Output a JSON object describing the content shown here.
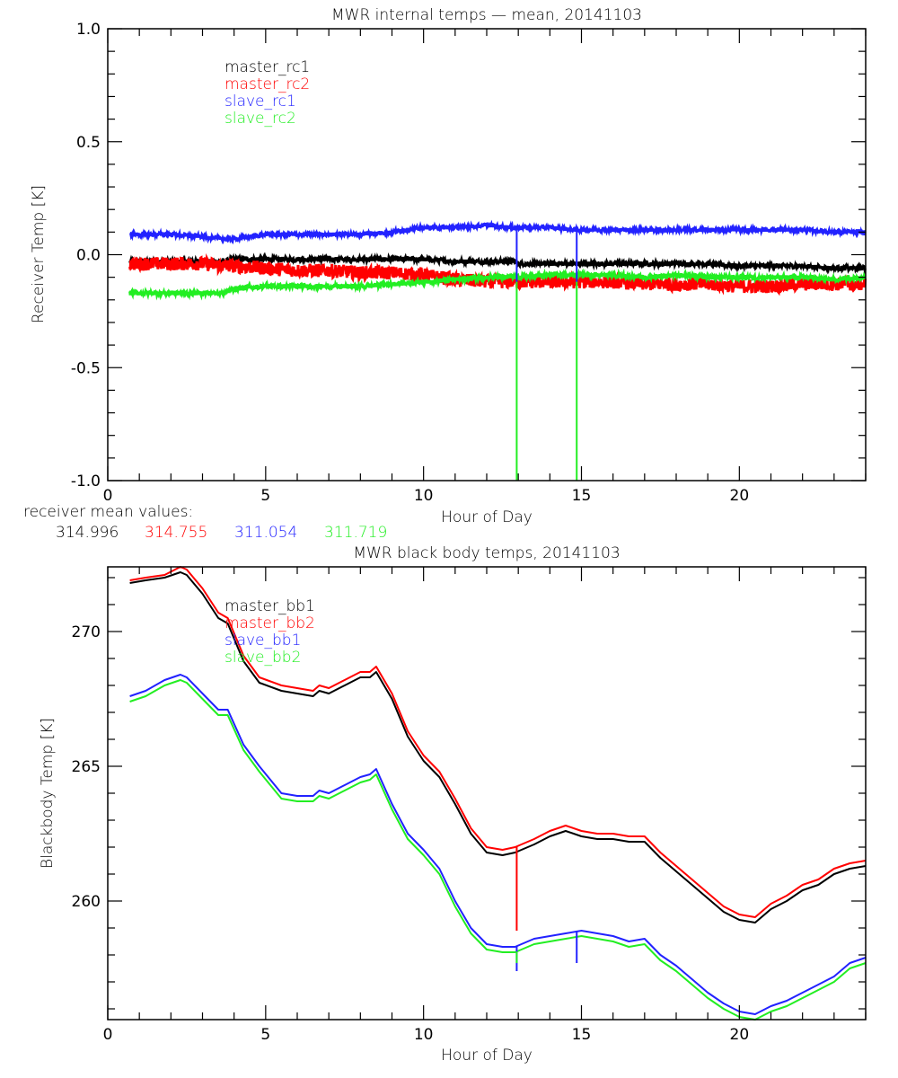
{
  "colors": {
    "black": "#000000",
    "red": "#ff0000",
    "blue": "#2222ff",
    "green": "#22ee22"
  },
  "chart_data": [
    {
      "type": "line",
      "title": "MWR internal temps — mean, 20141103",
      "xlabel": "Hour of Day",
      "ylabel": "Receiver Temp [K]",
      "xlim": [
        0,
        24
      ],
      "ylim": [
        -1.0,
        1.0
      ],
      "xticks": [
        "0",
        "5",
        "10",
        "15",
        "20"
      ],
      "xtick_values": [
        0,
        5,
        10,
        15,
        20
      ],
      "yticks": [
        "-1.0",
        "-0.5",
        "0.0",
        "0.5",
        "1.0"
      ],
      "ytick_values": [
        -1.0,
        -0.5,
        0.0,
        0.5,
        1.0
      ],
      "grid": false,
      "legend_position": "top-left",
      "noise": [
        0.01,
        0.03,
        0.008,
        0.01
      ],
      "x": [
        0.7,
        2,
        3,
        3.7,
        4,
        5,
        6,
        7,
        8,
        9,
        10,
        11,
        12,
        12.9,
        13,
        14,
        14.8,
        15,
        16,
        17,
        18,
        19,
        20,
        21,
        22,
        23,
        24
      ],
      "series": [
        {
          "name": "master_rc1",
          "color": "black",
          "values": [
            -0.03,
            -0.03,
            -0.03,
            -0.03,
            -0.02,
            -0.02,
            -0.02,
            -0.02,
            -0.02,
            -0.02,
            -0.02,
            -0.03,
            -0.03,
            -0.03,
            -0.04,
            -0.04,
            -0.04,
            -0.04,
            -0.04,
            -0.04,
            -0.04,
            -0.04,
            -0.05,
            -0.05,
            -0.05,
            -0.06,
            -0.06
          ]
        },
        {
          "name": "master_rc2",
          "color": "red",
          "values": [
            -0.04,
            -0.04,
            -0.04,
            -0.05,
            -0.05,
            -0.06,
            -0.07,
            -0.07,
            -0.08,
            -0.08,
            -0.09,
            -0.11,
            -0.12,
            -0.12,
            -0.12,
            -0.12,
            -0.12,
            -0.12,
            -0.12,
            -0.13,
            -0.13,
            -0.13,
            -0.14,
            -0.14,
            -0.13,
            -0.13,
            -0.13
          ]
        },
        {
          "name": "slave_rc1",
          "color": "blue",
          "values": [
            0.09,
            0.09,
            0.08,
            0.07,
            0.07,
            0.09,
            0.09,
            0.09,
            0.09,
            0.1,
            0.12,
            0.12,
            0.13,
            0.12,
            0.12,
            0.12,
            0.11,
            0.11,
            0.11,
            0.11,
            0.11,
            0.11,
            0.11,
            0.11,
            0.11,
            0.1,
            0.1
          ]
        },
        {
          "name": "slave_rc2",
          "color": "green",
          "values": [
            -0.17,
            -0.17,
            -0.17,
            -0.17,
            -0.15,
            -0.14,
            -0.14,
            -0.14,
            -0.14,
            -0.13,
            -0.12,
            -0.11,
            -0.1,
            -0.1,
            -0.1,
            -0.09,
            -0.09,
            -0.09,
            -0.09,
            -0.1,
            -0.09,
            -0.1,
            -0.1,
            -0.1,
            -0.1,
            -0.11,
            -0.1
          ]
        }
      ],
      "spikes": [
        {
          "x": 12.95,
          "series": "slave_rc2",
          "to": -1.0
        },
        {
          "x": 12.95,
          "series": "slave_rc1",
          "to": -0.12
        },
        {
          "x": 14.85,
          "series": "slave_rc2",
          "to": -1.0
        },
        {
          "x": 14.85,
          "series": "slave_rc1",
          "to": -0.12
        }
      ]
    },
    {
      "type": "line",
      "title": "MWR black body temps, 20141103",
      "xlabel": "Hour of Day",
      "ylabel": "Blackbody Temp [K]",
      "xlim": [
        0,
        24
      ],
      "ylim": [
        255.6,
        272.4
      ],
      "xticks": [
        "0",
        "5",
        "10",
        "15",
        "20"
      ],
      "xtick_values": [
        0,
        5,
        10,
        15,
        20
      ],
      "yticks": [
        "260",
        "265",
        "270"
      ],
      "ytick_values": [
        260,
        265,
        270
      ],
      "grid": false,
      "legend_position": "top-left",
      "x": [
        0.7,
        1.2,
        1.8,
        2.3,
        2.5,
        3.0,
        3.5,
        3.8,
        4.3,
        4.8,
        5.5,
        6.0,
        6.5,
        6.7,
        7.0,
        7.5,
        8.0,
        8.3,
        8.5,
        9.0,
        9.5,
        10.0,
        10.5,
        11.0,
        11.5,
        12.0,
        12.5,
        12.9,
        13.5,
        14.0,
        14.5,
        15.0,
        15.5,
        16.0,
        16.5,
        17.0,
        17.5,
        18.0,
        18.5,
        19.0,
        19.5,
        20.0,
        20.5,
        21.0,
        21.5,
        22.0,
        22.5,
        23.0,
        23.5,
        24.0
      ],
      "series": [
        {
          "name": "master_bb1",
          "color": "black",
          "values": [
            271.8,
            271.9,
            272.0,
            272.2,
            272.1,
            271.4,
            270.5,
            270.3,
            268.9,
            268.1,
            267.8,
            267.7,
            267.6,
            267.8,
            267.7,
            268.0,
            268.3,
            268.3,
            268.5,
            267.5,
            266.1,
            265.2,
            264.6,
            263.6,
            262.5,
            261.8,
            261.7,
            261.8,
            262.1,
            262.4,
            262.6,
            262.4,
            262.3,
            262.3,
            262.2,
            262.2,
            261.6,
            261.1,
            260.6,
            260.1,
            259.6,
            259.3,
            259.2,
            259.7,
            260.0,
            260.4,
            260.6,
            261.0,
            261.2,
            261.3
          ]
        },
        {
          "name": "master_bb2",
          "color": "red",
          "values": [
            271.9,
            272.0,
            272.1,
            272.4,
            272.3,
            271.6,
            270.7,
            270.5,
            269.1,
            268.3,
            268.0,
            267.9,
            267.8,
            268.0,
            267.9,
            268.2,
            268.5,
            268.5,
            268.7,
            267.7,
            266.3,
            265.4,
            264.8,
            263.8,
            262.7,
            262.0,
            261.9,
            262.0,
            262.3,
            262.6,
            262.8,
            262.6,
            262.5,
            262.5,
            262.4,
            262.4,
            261.8,
            261.3,
            260.8,
            260.3,
            259.8,
            259.5,
            259.4,
            259.9,
            260.2,
            260.6,
            260.8,
            261.2,
            261.4,
            261.5
          ]
        },
        {
          "name": "slave_bb1",
          "color": "blue",
          "values": [
            267.6,
            267.8,
            268.2,
            268.4,
            268.3,
            267.7,
            267.1,
            267.1,
            265.8,
            265.0,
            264.0,
            263.9,
            263.9,
            264.1,
            264.0,
            264.3,
            264.6,
            264.7,
            264.9,
            263.6,
            262.5,
            261.9,
            261.2,
            260.0,
            259.0,
            258.4,
            258.3,
            258.3,
            258.6,
            258.7,
            258.8,
            258.9,
            258.8,
            258.7,
            258.5,
            258.6,
            258.0,
            257.6,
            257.1,
            256.6,
            256.2,
            255.9,
            255.8,
            256.1,
            256.3,
            256.6,
            256.9,
            257.2,
            257.7,
            257.9
          ]
        },
        {
          "name": "slave_bb2",
          "color": "green",
          "values": [
            267.4,
            267.6,
            268.0,
            268.2,
            268.1,
            267.5,
            266.9,
            266.9,
            265.6,
            264.8,
            263.8,
            263.7,
            263.7,
            263.9,
            263.8,
            264.1,
            264.4,
            264.5,
            264.7,
            263.4,
            262.3,
            261.7,
            261.0,
            259.8,
            258.8,
            258.2,
            258.1,
            258.1,
            258.4,
            258.5,
            258.6,
            258.7,
            258.6,
            258.5,
            258.3,
            258.4,
            257.8,
            257.4,
            256.9,
            256.4,
            256.0,
            255.7,
            255.6,
            255.9,
            256.1,
            256.4,
            256.7,
            257.0,
            257.5,
            257.7
          ]
        }
      ],
      "spikes": [
        {
          "x": 12.95,
          "series": "master_bb2",
          "to": 258.9
        },
        {
          "x": 12.95,
          "series": "slave_bb1",
          "to": 257.4
        },
        {
          "x": 12.95,
          "series": "slave_bb2",
          "to": 257.7
        },
        {
          "x": 14.85,
          "series": "slave_bb1",
          "to": 257.7
        }
      ]
    }
  ],
  "annotations": {
    "receiver_mean_label": "receiver mean values:",
    "receiver_means": [
      {
        "value": "314.996",
        "color": "black"
      },
      {
        "value": "314.755",
        "color": "red"
      },
      {
        "value": "311.054",
        "color": "blue"
      },
      {
        "value": "311.719",
        "color": "green"
      }
    ]
  }
}
